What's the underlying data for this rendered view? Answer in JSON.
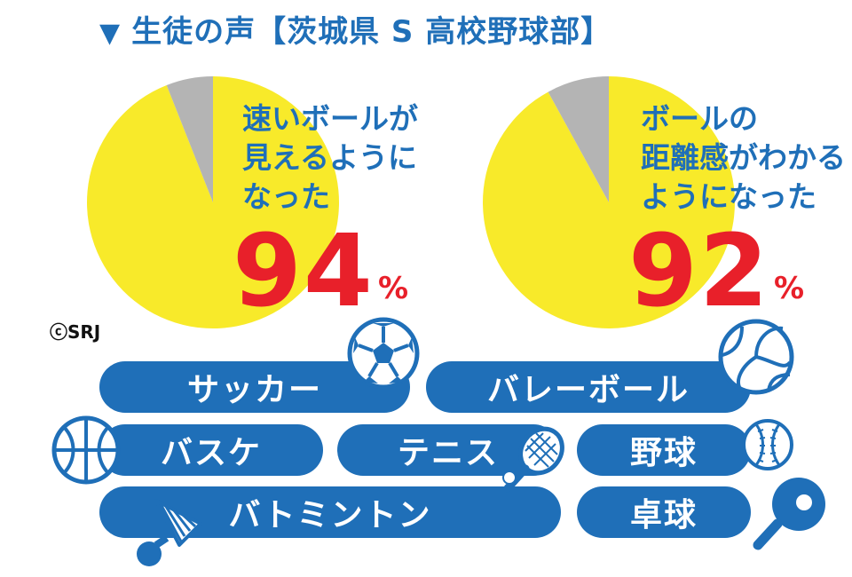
{
  "title": {
    "marker": "▼",
    "text": "生徒の声【茨城県 S 高校野球部】"
  },
  "chart_data": [
    {
      "type": "pie",
      "title": "速いボールが見えるようになった",
      "lines": [
        "速いボールが",
        "見えるように",
        "なった"
      ],
      "values": [
        94,
        6
      ],
      "value_label": "94",
      "unit": "%",
      "colors": [
        "#f8ea2a",
        "#b4b4b4"
      ]
    },
    {
      "type": "pie",
      "title": "ボールの距離感がわかるようになった",
      "lines": [
        "ボールの",
        "距離感がわかる",
        "ようになった"
      ],
      "values": [
        92,
        8
      ],
      "value_label": "92",
      "unit": "%",
      "colors": [
        "#f8ea2a",
        "#b4b4b4"
      ]
    }
  ],
  "copyright": "ⓒSRJ",
  "sports": [
    {
      "label": "サッカー",
      "icon": "soccer-ball-icon"
    },
    {
      "label": "バレーボール",
      "icon": "volleyball-icon"
    },
    {
      "label": "バスケ",
      "icon": "basketball-icon"
    },
    {
      "label": "テニス",
      "icon": "tennis-racket-icon"
    },
    {
      "label": "野球",
      "icon": "baseball-icon"
    },
    {
      "label": "バトミントン",
      "icon": "shuttlecock-icon"
    },
    {
      "label": "卓球",
      "icon": "ping-pong-paddle-icon"
    }
  ],
  "colors": {
    "accent_blue": "#1f6fb8",
    "highlight_red": "#e8202a",
    "pie_yellow": "#f8ea2a",
    "pie_gray": "#b4b4b4"
  }
}
